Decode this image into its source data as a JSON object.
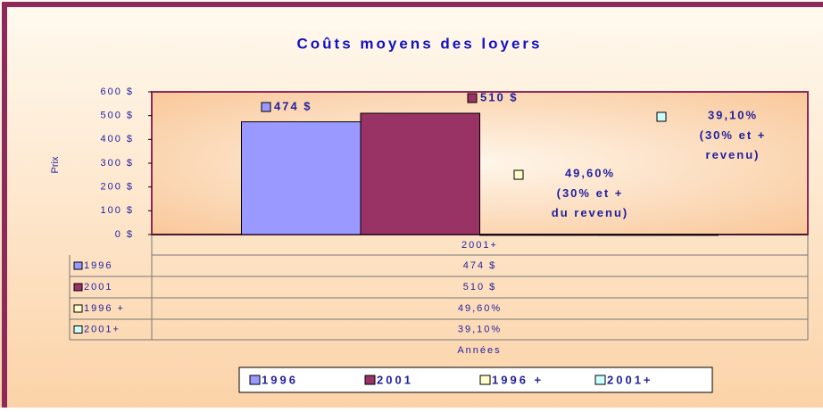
{
  "chart_data": {
    "type": "bar",
    "title": "Coûts moyens des loyers",
    "y_label": "Prix",
    "x_label": "Années",
    "categories": [
      "2001+"
    ],
    "series": [
      {
        "name": "1996",
        "color": "#9999ff",
        "values": [
          474
        ],
        "value_labels": [
          "474 $"
        ]
      },
      {
        "name": "2001",
        "color": "#993366",
        "values": [
          510
        ],
        "value_labels": [
          "510 $"
        ]
      },
      {
        "name": "1996 +",
        "color": "#ffffcc",
        "values": [
          0.496
        ],
        "value_labels": [
          "49,60%"
        ],
        "label_note": "(30% et + du revenu)"
      },
      {
        "name": "2001+",
        "color": "#ccffff",
        "values": [
          0.391
        ],
        "value_labels": [
          "39,10%"
        ],
        "label_note": "(30% et + revenu)"
      }
    ],
    "ylim": [
      0,
      600
    ],
    "yticks": [
      {
        "value": 0,
        "label": "0 $"
      },
      {
        "value": 100,
        "label": "100 $"
      },
      {
        "value": 200,
        "label": "200 $"
      },
      {
        "value": 300,
        "label": "300 $"
      },
      {
        "value": 400,
        "label": "400 $"
      },
      {
        "value": 500,
        "label": "500 $"
      },
      {
        "value": 600,
        "label": "600 $"
      }
    ],
    "legend": "bottom"
  }
}
